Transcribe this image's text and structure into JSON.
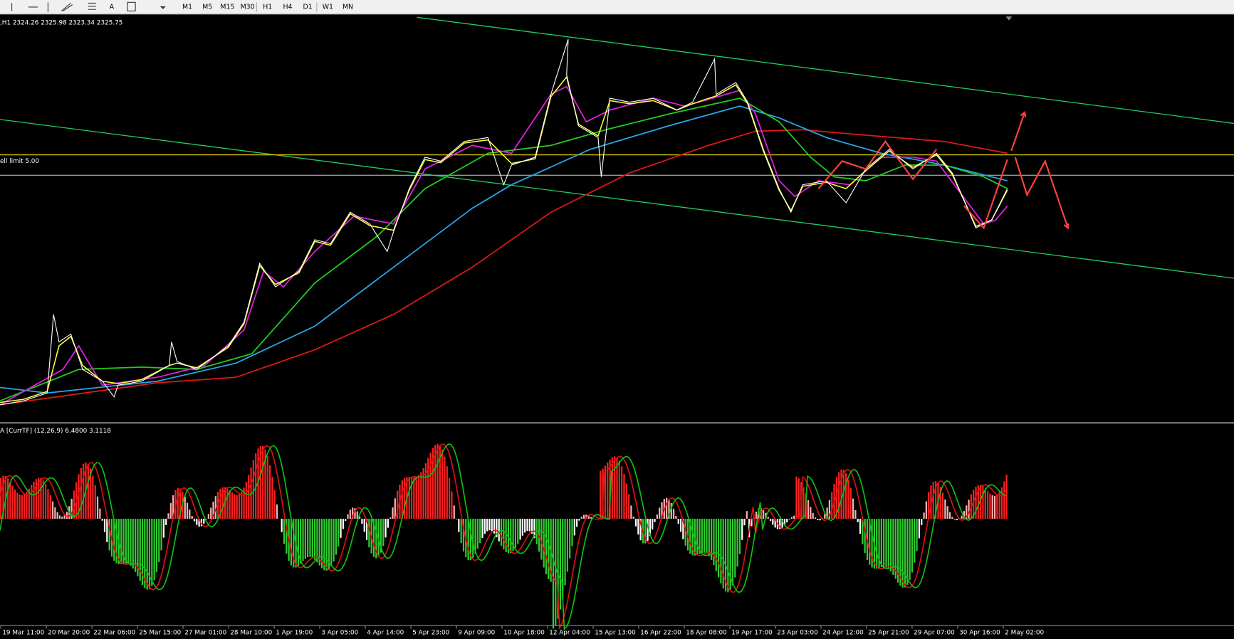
{
  "toolbar": {
    "timeframes": [
      "M1",
      "M5",
      "M15",
      "M30",
      "H1",
      "H4",
      "D1",
      "W1",
      "MN"
    ],
    "icon_text": "A"
  },
  "chart": {
    "header": ",H1  2324.26 2325.98 2323.34 2325.75",
    "order_label": "ell limit 5.00"
  },
  "indicator": {
    "label": "A [CurrTF] (12,26,9) 6.4800 3.1118"
  },
  "time_axis": [
    "19 Mar 11:00",
    "20 Mar 20:00",
    "22 Mar 06:00",
    "25 Mar 15:00",
    "27 Mar 01:00",
    "28 Mar 10:00",
    "1 Apr 19:00",
    "3 Apr 05:00",
    "4 Apr 14:00",
    "5 Apr 23:00",
    "9 Apr 09:00",
    "10 Apr 18:00",
    "12 Apr 04:00",
    "15 Apr 13:00",
    "16 Apr 22:00",
    "18 Apr 08:00",
    "19 Apr 17:00",
    "23 Apr 03:00",
    "24 Apr 12:00",
    "25 Apr 21:00",
    "29 Apr 07:00",
    "30 Apr 16:00",
    "2 May 02:00"
  ]
}
